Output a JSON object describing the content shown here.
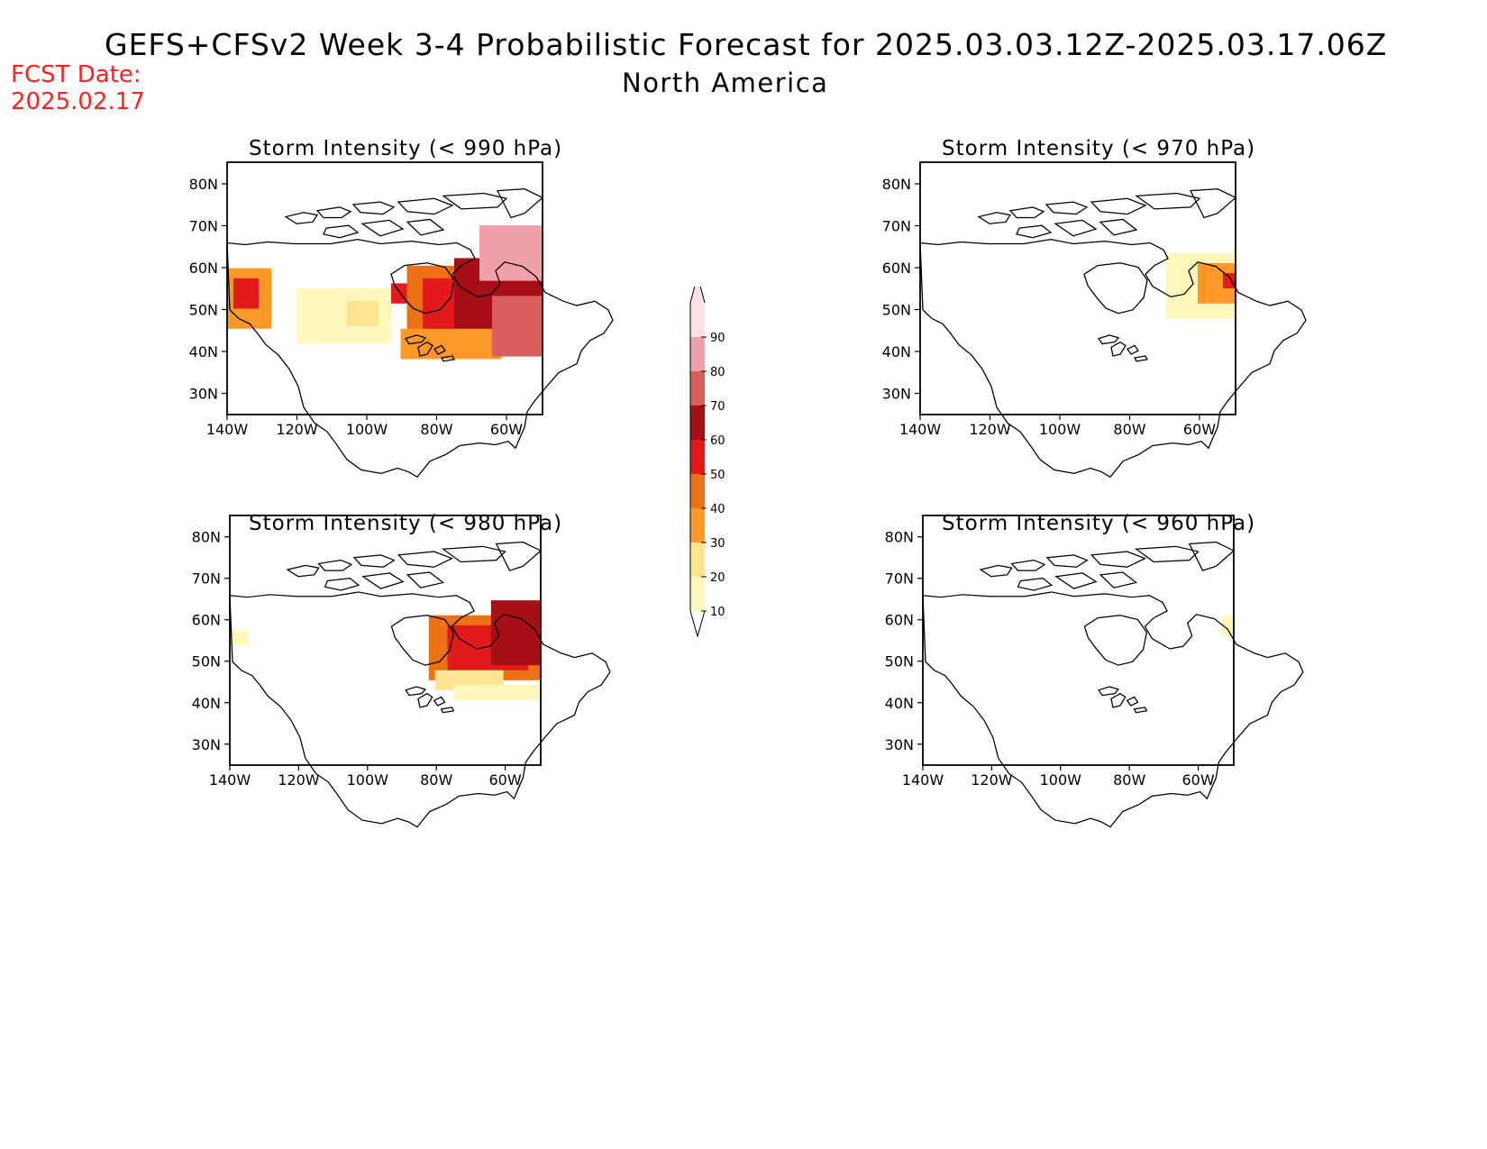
{
  "title": "GEFS+CFSv2 Week 3-4 Probabilistic Forecast for 2025.03.03.12Z-2025.03.17.06Z",
  "subtitle": "North America",
  "fcst_date": {
    "label": "FCST Date:",
    "value": "2025.02.17"
  },
  "colorbar": {
    "levels": [
      "10",
      "20",
      "30",
      "40",
      "50",
      "60",
      "70",
      "80",
      "90"
    ],
    "colors": [
      "#fff7bc",
      "#fee391",
      "#fe9929",
      "#ec7014",
      "#e31a1c",
      "#a50f15",
      "#d95f5f",
      "#f0a0a8",
      "#fde0e4"
    ]
  },
  "axes": {
    "lat_labels": [
      "80N",
      "70N",
      "60N",
      "50N",
      "40N",
      "30N"
    ],
    "lon_labels": [
      "140W",
      "120W",
      "100W",
      "80W",
      "60W"
    ]
  },
  "panels": [
    {
      "id": "p990",
      "title": "Storm Intensity (< 990 hPa)"
    },
    {
      "id": "p970",
      "title": "Storm Intensity (< 970 hPa)"
    },
    {
      "id": "p980",
      "title": "Storm Intensity (< 980 hPa)"
    },
    {
      "id": "p960",
      "title": "Storm Intensity (< 960 hPa)"
    }
  ]
}
